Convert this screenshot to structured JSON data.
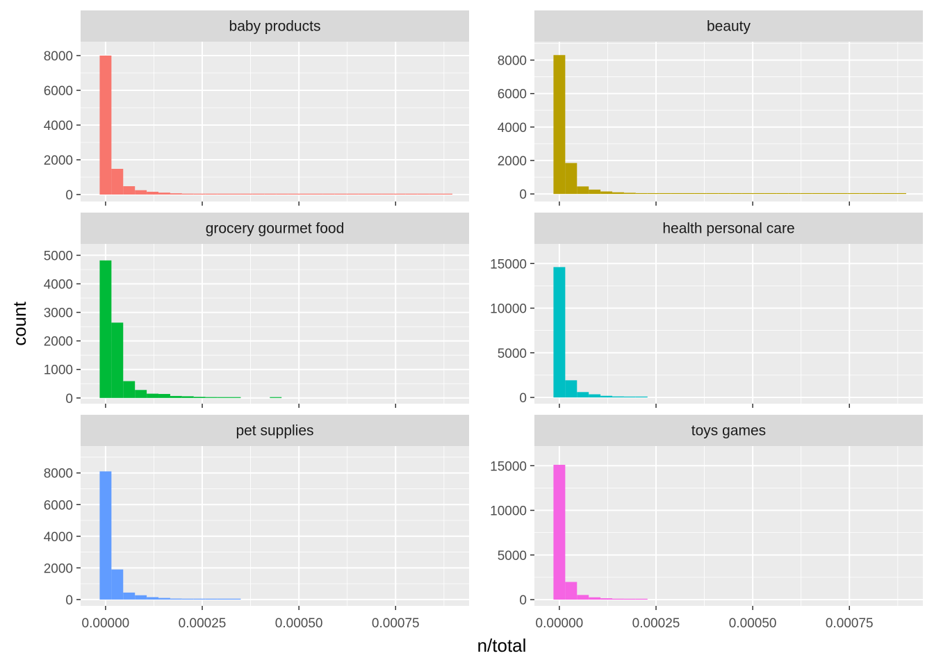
{
  "chart_data": {
    "type": "bar",
    "xlabel": "n/total",
    "ylabel": "count",
    "x_ticks": [
      {
        "value": 0.0,
        "label": "0.00000"
      },
      {
        "value": 0.00025,
        "label": "0.00025"
      },
      {
        "value": 0.0005,
        "label": "0.00050"
      },
      {
        "value": 0.00075,
        "label": "0.00075"
      }
    ],
    "xlim": [
      -6.45e-05,
      0.00094
    ],
    "bin_width": 3.04e-05,
    "first_bin_center": 0.0,
    "panels": [
      {
        "title": "baby products",
        "color": "#F8766D",
        "ylim": [
          -400,
          8800
        ],
        "y_ticks": [
          0,
          2000,
          4000,
          6000,
          8000
        ],
        "counts": [
          8000,
          1480,
          480,
          250,
          160,
          110,
          70,
          50,
          40,
          30,
          25,
          20,
          18,
          15,
          12,
          10,
          10,
          8,
          8,
          6,
          6,
          5,
          5,
          5,
          4,
          4,
          3,
          3,
          3,
          2
        ]
      },
      {
        "title": "beauty",
        "color": "#B79F00",
        "ylim": [
          -450,
          9100
        ],
        "y_ticks": [
          0,
          2000,
          4000,
          6000,
          8000
        ],
        "counts": [
          8300,
          1850,
          450,
          260,
          150,
          100,
          70,
          50,
          40,
          30,
          25,
          20,
          18,
          15,
          12,
          10,
          10,
          8,
          8,
          6,
          6,
          5,
          5,
          5,
          4,
          4,
          3,
          3,
          3,
          2
        ]
      },
      {
        "title": "grocery gourmet food",
        "color": "#00BA38",
        "ylim": [
          -200,
          5400
        ],
        "y_ticks": [
          0,
          1000,
          2000,
          3000,
          4000,
          5000
        ],
        "counts": [
          4820,
          2640,
          590,
          280,
          150,
          140,
          70,
          60,
          40,
          30,
          25,
          25,
          0,
          0,
          0,
          0,
          0,
          0,
          0,
          0,
          0,
          0,
          0,
          0,
          0,
          0,
          0,
          0,
          0,
          0
        ],
        "extra_bars": [
          {
            "x": 0.00044,
            "count": 25
          }
        ]
      },
      {
        "title": "health personal care",
        "color": "#00BFC4",
        "ylim": [
          -700,
          17200
        ],
        "y_ticks": [
          0,
          5000,
          10000,
          15000
        ],
        "counts": [
          14600,
          1920,
          600,
          350,
          180,
          110,
          70,
          40,
          0,
          0,
          0,
          0,
          0,
          0,
          0,
          0,
          0,
          0,
          0,
          0,
          0,
          0,
          0,
          0,
          0,
          0,
          0,
          0,
          0,
          0
        ]
      },
      {
        "title": "pet supplies",
        "color": "#619CFF",
        "ylim": [
          -400,
          9700
        ],
        "y_ticks": [
          0,
          2000,
          4000,
          6000,
          8000
        ],
        "counts": [
          8100,
          1900,
          440,
          270,
          150,
          100,
          60,
          40,
          30,
          20,
          15,
          10,
          0,
          0,
          0,
          0,
          0,
          0,
          0,
          0,
          0,
          0,
          0,
          0,
          0,
          0,
          0,
          0,
          0,
          0
        ]
      },
      {
        "title": "toys games",
        "color": "#F564E3",
        "ylim": [
          -700,
          17200
        ],
        "y_ticks": [
          0,
          5000,
          10000,
          15000
        ],
        "counts": [
          15100,
          1980,
          520,
          260,
          150,
          100,
          60,
          40,
          0,
          0,
          0,
          0,
          0,
          0,
          0,
          0,
          0,
          0,
          0,
          0,
          0,
          0,
          0,
          0,
          0,
          0,
          0,
          0,
          0,
          0
        ]
      }
    ]
  }
}
